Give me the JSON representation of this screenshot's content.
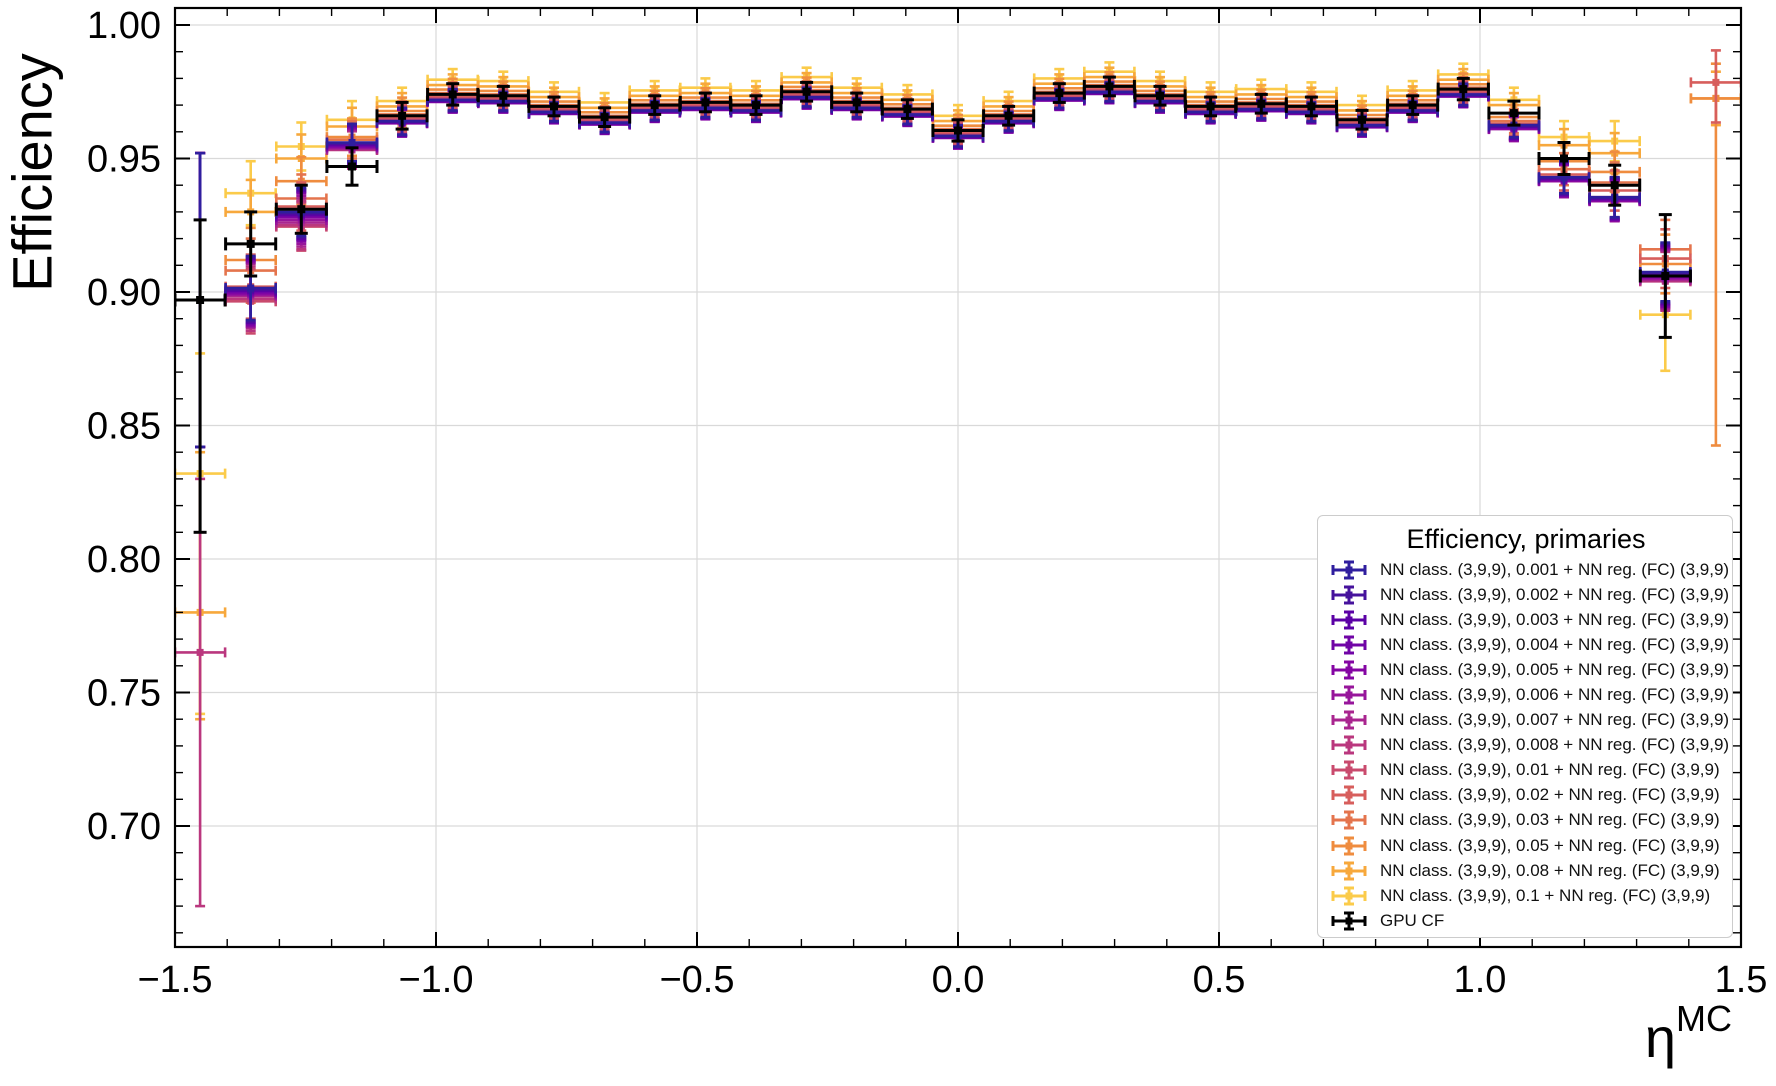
{
  "figure": {
    "background": "#ffffff",
    "grid_color": "#d9d9d9",
    "frame_color": "#000000"
  },
  "chart_data": {
    "type": "scatter",
    "subtype": "errorbar",
    "title": "",
    "xlabel_base": "η",
    "xlabel_sup": "MC",
    "ylabel": "Efficiency",
    "xlim": [
      -1.5,
      1.5
    ],
    "ylim": [
      0.6547,
      1.0064
    ],
    "grid": true,
    "xticks": [
      -1.5,
      -1.0,
      -0.5,
      0.0,
      0.5,
      1.0,
      1.5
    ],
    "xtick_labels": [
      "−1.5",
      "−1.0",
      "−0.5",
      "0.0",
      "0.5",
      "1.0",
      "1.5"
    ],
    "yticks": [
      0.7,
      0.75,
      0.8,
      0.85,
      0.9,
      0.95,
      1.0
    ],
    "ytick_labels": [
      "0.70",
      "0.75",
      "0.80",
      "0.85",
      "0.90",
      "0.95",
      "1.00"
    ],
    "minor_x_step": 0.1,
    "minor_y_step": 0.01,
    "legend": {
      "title": "Efficiency, primaries",
      "position": "lower right"
    },
    "bins": [
      -1.452,
      -1.355,
      -1.258,
      -1.161,
      -1.065,
      -0.968,
      -0.871,
      -0.774,
      -0.677,
      -0.581,
      -0.484,
      -0.387,
      -0.29,
      -0.194,
      -0.097,
      0.0,
      0.097,
      0.194,
      0.29,
      0.387,
      0.484,
      0.581,
      0.677,
      0.774,
      0.871,
      0.968,
      1.065,
      1.161,
      1.258,
      1.355,
      1.452
    ],
    "xerr": 0.048,
    "yerr_common": [
      0.055,
      0.012,
      0.009,
      0.007,
      0.005,
      0.004,
      0.0035,
      0.0035,
      0.0035,
      0.0035,
      0.0035,
      0.0035,
      0.0035,
      0.0035,
      0.0035,
      0.004,
      0.0035,
      0.0035,
      0.0035,
      0.0035,
      0.0035,
      0.0035,
      0.0035,
      0.0035,
      0.0035,
      0.004,
      0.0045,
      0.006,
      0.0075,
      0.011,
      0.015
    ],
    "yerr_overrides": {
      "7-0": [
        0.095,
        0.065
      ],
      "12-0": [
        0.04,
        0.06
      ],
      "13-0": [
        0.09,
        0.045
      ],
      "14-0": [
        0.087,
        0.03
      ],
      "13-29": [
        0.021,
        0.021
      ],
      "14-29": [
        0.023,
        0.023
      ],
      "9-30": [
        0.015,
        0.012
      ],
      "11-30": [
        0.13,
        0.013
      ],
      "12-30": [
        0.01,
        0.01
      ]
    },
    "series": [
      {
        "name": "NN class. (3,9,9), 0.001 + NN reg. (FC) (3,9,9)",
        "color": "#2f1e9e",
        "values": [
          0.897,
          0.9015,
          0.93,
          0.956,
          0.964,
          0.972,
          0.9715,
          0.9675,
          0.9635,
          0.968,
          0.969,
          0.968,
          0.973,
          0.969,
          0.9665,
          0.9585,
          0.964,
          0.9725,
          0.975,
          0.9715,
          0.9675,
          0.9685,
          0.9675,
          0.9625,
          0.968,
          0.974,
          0.9625,
          0.943,
          0.9355,
          0.9075,
          null
        ]
      },
      {
        "name": "NN class. (3,9,9), 0.002 + NN reg. (FC) (3,9,9)",
        "color": "#46129c",
        "values": [
          0.897,
          0.901,
          0.9295,
          0.9556,
          0.9638,
          0.9718,
          0.9713,
          0.9673,
          0.9633,
          0.9678,
          0.9688,
          0.9678,
          0.9728,
          0.9688,
          0.9663,
          0.9583,
          0.9638,
          0.9723,
          0.9748,
          0.9713,
          0.9673,
          0.9683,
          0.9673,
          0.9623,
          0.9678,
          0.9738,
          0.9622,
          0.9427,
          0.9352,
          0.907,
          null
        ]
      },
      {
        "name": "NN class. (3,9,9), 0.003 + NN reg. (FC) (3,9,9)",
        "color": "#5b01a5",
        "values": [
          0.897,
          0.9005,
          0.929,
          0.9552,
          0.9636,
          0.9716,
          0.9711,
          0.9671,
          0.9631,
          0.9676,
          0.9686,
          0.9676,
          0.9726,
          0.9686,
          0.9661,
          0.9581,
          0.9636,
          0.9721,
          0.9746,
          0.9711,
          0.9671,
          0.9681,
          0.9671,
          0.9621,
          0.9676,
          0.9736,
          0.9619,
          0.9424,
          0.9349,
          0.9065,
          null
        ]
      },
      {
        "name": "NN class. (3,9,9), 0.004 + NN reg. (FC) (3,9,9)",
        "color": "#7004a6",
        "values": [
          0.897,
          0.9,
          0.9285,
          0.9548,
          0.9634,
          0.9714,
          0.9709,
          0.9669,
          0.9629,
          0.9674,
          0.9684,
          0.9674,
          0.9724,
          0.9684,
          0.9659,
          0.9579,
          0.9634,
          0.9719,
          0.9744,
          0.9709,
          0.9669,
          0.9679,
          0.9669,
          0.9619,
          0.9674,
          0.9734,
          0.9616,
          0.9421,
          0.9346,
          0.906,
          null
        ]
      },
      {
        "name": "NN class. (3,9,9), 0.005 + NN reg. (FC) (3,9,9)",
        "color": "#8405a3",
        "values": [
          0.897,
          0.8995,
          0.928,
          0.9544,
          0.9632,
          0.9712,
          0.9707,
          0.9667,
          0.9627,
          0.9672,
          0.9682,
          0.9672,
          0.9722,
          0.9682,
          0.9657,
          0.9577,
          0.9632,
          0.9717,
          0.9742,
          0.9707,
          0.9667,
          0.9677,
          0.9667,
          0.9617,
          0.9672,
          0.9732,
          0.9613,
          0.9418,
          0.9343,
          0.9055,
          null
        ]
      },
      {
        "name": "NN class. (3,9,9), 0.006 + NN reg. (FC) (3,9,9)",
        "color": "#97159b",
        "values": [
          0.897,
          0.899,
          0.927,
          0.954,
          0.9634,
          0.9714,
          0.9709,
          0.9669,
          0.9629,
          0.9674,
          0.9684,
          0.9674,
          0.9724,
          0.9684,
          0.9659,
          0.9579,
          0.9634,
          0.9719,
          0.9744,
          0.9709,
          0.9669,
          0.9679,
          0.9669,
          0.9619,
          0.9674,
          0.9734,
          0.961,
          0.9415,
          0.934,
          0.905,
          null
        ]
      },
      {
        "name": "NN class. (3,9,9), 0.007 + NN reg. (FC) (3,9,9)",
        "color": "#a9258f",
        "values": [
          0.897,
          0.8985,
          0.926,
          0.9536,
          0.9636,
          0.9716,
          0.9711,
          0.9671,
          0.9631,
          0.9676,
          0.9686,
          0.9676,
          0.9726,
          0.9686,
          0.9661,
          0.9581,
          0.9636,
          0.9721,
          0.9746,
          0.9711,
          0.9671,
          0.9681,
          0.9671,
          0.9621,
          0.9676,
          0.9736,
          0.9613,
          0.9418,
          0.9343,
          0.9045,
          null
        ]
      },
      {
        "name": "NN class. (3,9,9), 0.008 + NN reg. (FC) (3,9,9)",
        "color": "#ba377e",
        "values": [
          0.765,
          0.8975,
          0.925,
          0.9532,
          0.9638,
          0.9718,
          0.9713,
          0.9673,
          0.9633,
          0.9678,
          0.9688,
          0.9678,
          0.9728,
          0.9688,
          0.9663,
          0.9583,
          0.9638,
          0.9723,
          0.9748,
          0.9713,
          0.9673,
          0.9683,
          0.9673,
          0.9623,
          0.9678,
          0.9738,
          0.9616,
          0.9421,
          0.9346,
          0.904,
          null
        ]
      },
      {
        "name": "NN class. (3,9,9), 0.01 + NN reg. (FC) (3,9,9)",
        "color": "#c94a6d",
        "values": [
          0.897,
          0.8965,
          0.9245,
          0.954,
          0.9645,
          0.9725,
          0.972,
          0.968,
          0.964,
          0.9685,
          0.9695,
          0.9685,
          0.9735,
          0.9695,
          0.967,
          0.959,
          0.9645,
          0.973,
          0.9755,
          0.972,
          0.968,
          0.969,
          0.968,
          0.963,
          0.9685,
          0.9745,
          0.962,
          0.943,
          0.9355,
          0.906,
          null
        ]
      },
      {
        "name": "NN class. (3,9,9), 0.02 + NN reg. (FC) (3,9,9)",
        "color": "#d75e5c",
        "values": [
          0.897,
          0.902,
          0.932,
          0.955,
          0.9652,
          0.9732,
          0.9727,
          0.9687,
          0.9647,
          0.9692,
          0.9702,
          0.9692,
          0.9742,
          0.9702,
          0.9677,
          0.9597,
          0.9652,
          0.9737,
          0.9762,
          0.9727,
          0.9687,
          0.9697,
          0.9687,
          0.9637,
          0.9692,
          0.9752,
          0.963,
          0.944,
          0.938,
          0.9125,
          0.9785
        ]
      },
      {
        "name": "NN class. (3,9,9), 0.03 + NN reg. (FC) (3,9,9)",
        "color": "#e4744d",
        "values": [
          0.897,
          0.908,
          0.935,
          0.957,
          0.9665,
          0.9745,
          0.974,
          0.97,
          0.966,
          0.9705,
          0.9715,
          0.9705,
          0.9755,
          0.9715,
          0.969,
          0.961,
          0.9665,
          0.975,
          0.9775,
          0.974,
          0.97,
          0.971,
          0.97,
          0.965,
          0.9705,
          0.9765,
          0.964,
          0.946,
          0.941,
          0.916,
          null
        ]
      },
      {
        "name": "NN class. (3,9,9), 0.05 + NN reg. (FC) (3,9,9)",
        "color": "#ef8c3f",
        "values": [
          0.897,
          0.912,
          0.9415,
          0.958,
          0.9678,
          0.9758,
          0.9753,
          0.9713,
          0.9673,
          0.9718,
          0.9728,
          0.9718,
          0.9768,
          0.9728,
          0.9703,
          0.9623,
          0.9678,
          0.9763,
          0.9788,
          0.9753,
          0.9713,
          0.9723,
          0.9713,
          0.9663,
          0.9718,
          0.9778,
          0.9655,
          0.949,
          0.945,
          0.9105,
          0.9725
        ]
      },
      {
        "name": "NN class. (3,9,9), 0.08 + NN reg. (FC) (3,9,9)",
        "color": "#f7a83c",
        "values": [
          0.78,
          0.93,
          0.95,
          0.962,
          0.9695,
          0.9775,
          0.977,
          0.973,
          0.969,
          0.9735,
          0.9745,
          0.9735,
          0.9785,
          0.9745,
          0.972,
          0.964,
          0.9695,
          0.978,
          0.9805,
          0.977,
          0.973,
          0.974,
          0.973,
          0.968,
          0.9735,
          0.9795,
          0.97,
          0.955,
          0.952,
          0.905,
          0.9725
        ]
      },
      {
        "name": "NN class. (3,9,9), 0.1 + NN reg. (FC) (3,9,9)",
        "color": "#fbcb4a",
        "values": [
          0.832,
          0.937,
          0.9545,
          0.9645,
          0.9715,
          0.9795,
          0.979,
          0.975,
          0.971,
          0.9755,
          0.9765,
          0.9755,
          0.9805,
          0.9765,
          0.974,
          0.966,
          0.9715,
          0.98,
          0.9825,
          0.979,
          0.975,
          0.976,
          0.975,
          0.97,
          0.9755,
          0.9815,
          0.972,
          0.958,
          0.9565,
          0.8915,
          null
        ]
      },
      {
        "name": "GPU CF",
        "color": "#000000",
        "values": [
          0.897,
          0.918,
          0.931,
          0.947,
          0.966,
          0.974,
          0.9735,
          0.9695,
          0.9655,
          0.97,
          0.971,
          0.97,
          0.975,
          0.971,
          0.9685,
          0.9605,
          0.966,
          0.9745,
          0.977,
          0.9735,
          0.9695,
          0.9705,
          0.9695,
          0.9645,
          0.97,
          0.976,
          0.967,
          0.95,
          0.94,
          0.906,
          null
        ]
      }
    ]
  }
}
